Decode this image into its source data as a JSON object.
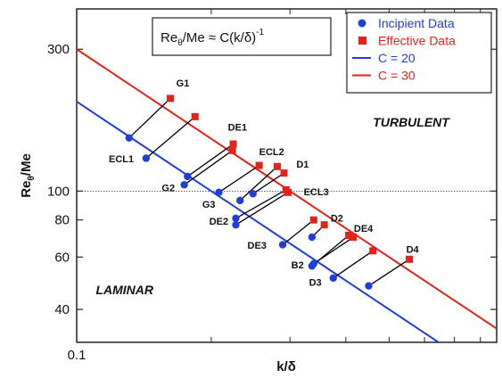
{
  "chart_data": {
    "type": "scatter",
    "xlabel": "k/δ",
    "ylabel_main": "Re",
    "ylabel_sub": "θ",
    "ylabel_rest": "/Me",
    "equation": {
      "main": "Re",
      "sub": "θ",
      "rest": "/Me ≈ C(k/δ)",
      "sup": "-1"
    },
    "scale": "log-log",
    "xlim": [
      0.1,
      0.87
    ],
    "ylim": [
      31,
      410
    ],
    "x_ticks": [
      {
        "value": 0.1,
        "label": "0.1"
      }
    ],
    "y_ticks": [
      {
        "value": 40,
        "label": "40"
      },
      {
        "value": 60,
        "label": "60"
      },
      {
        "value": 80,
        "label": "80"
      },
      {
        "value": 100,
        "label": "100"
      },
      {
        "value": 300,
        "label": "300"
      }
    ],
    "reference_line": {
      "y": 100
    },
    "regions": [
      {
        "label": "TURBULENT",
        "x": 0.56,
        "y": 165
      },
      {
        "label": "LAMINAR",
        "x": 0.128,
        "y": 45
      }
    ],
    "colors": {
      "incipient": "#1f3fd6",
      "effective": "#e3231a",
      "c20": "#1f3fd6",
      "c30": "#e3231a"
    },
    "legend": [
      {
        "label": "Incipient Data",
        "marker": "circle",
        "color": "#1f3fd6"
      },
      {
        "label": "Effective Data",
        "marker": "square",
        "color": "#e3231a"
      },
      {
        "label": "C = 20",
        "marker": "line",
        "color": "#1f3fd6"
      },
      {
        "label": "C = 30",
        "marker": "line",
        "color": "#e3231a"
      }
    ],
    "lines": [
      {
        "name": "C = 20",
        "C": 20
      },
      {
        "name": "C = 30",
        "C": 30
      }
    ],
    "series": [
      {
        "name": "Incipient Data",
        "points": [
          {
            "x": 0.131,
            "y": 151
          },
          {
            "x": 0.143,
            "y": 129
          },
          {
            "x": 0.177,
            "y": 112
          },
          {
            "x": 0.174,
            "y": 105
          },
          {
            "x": 0.208,
            "y": 99
          },
          {
            "x": 0.232,
            "y": 93
          },
          {
            "x": 0.248,
            "y": 98
          },
          {
            "x": 0.227,
            "y": 81
          },
          {
            "x": 0.227,
            "y": 77
          },
          {
            "x": 0.289,
            "y": 66
          },
          {
            "x": 0.336,
            "y": 70
          },
          {
            "x": 0.336,
            "y": 56
          },
          {
            "x": 0.339,
            "y": 57
          },
          {
            "x": 0.375,
            "y": 51
          },
          {
            "x": 0.45,
            "y": 48
          }
        ]
      },
      {
        "name": "Effective Data",
        "points": [
          {
            "x": 0.162,
            "y": 205
          },
          {
            "x": 0.184,
            "y": 178
          },
          {
            "x": 0.224,
            "y": 144
          },
          {
            "x": 0.223,
            "y": 137
          },
          {
            "x": 0.256,
            "y": 122
          },
          {
            "x": 0.281,
            "y": 121
          },
          {
            "x": 0.291,
            "y": 115
          },
          {
            "x": 0.294,
            "y": 101
          },
          {
            "x": 0.297,
            "y": 99
          },
          {
            "x": 0.339,
            "y": 80
          },
          {
            "x": 0.358,
            "y": 77
          },
          {
            "x": 0.406,
            "y": 71
          },
          {
            "x": 0.416,
            "y": 70
          },
          {
            "x": 0.46,
            "y": 63
          },
          {
            "x": 0.555,
            "y": 59
          }
        ]
      }
    ],
    "labels": [
      {
        "text": "G1",
        "x": 0.167,
        "y": 225
      },
      {
        "text": "DE1",
        "x": 0.218,
        "y": 160
      },
      {
        "text": "ECL2",
        "x": 0.256,
        "y": 132
      },
      {
        "text": "D1",
        "x": 0.31,
        "y": 120
      },
      {
        "text": "ECL1",
        "x": 0.118,
        "y": 125
      },
      {
        "text": "G2",
        "x": 0.155,
        "y": 100
      },
      {
        "text": "ECL3",
        "x": 0.322,
        "y": 97
      },
      {
        "text": "G3",
        "x": 0.191,
        "y": 88
      },
      {
        "text": "DE2",
        "x": 0.198,
        "y": 77
      },
      {
        "text": "D2",
        "x": 0.37,
        "y": 79
      },
      {
        "text": "DE4",
        "x": 0.417,
        "y": 73
      },
      {
        "text": "DE3",
        "x": 0.241,
        "y": 64
      },
      {
        "text": "B2",
        "x": 0.302,
        "y": 55
      },
      {
        "text": "D4",
        "x": 0.546,
        "y": 62
      },
      {
        "text": "D3",
        "x": 0.331,
        "y": 48
      }
    ]
  }
}
